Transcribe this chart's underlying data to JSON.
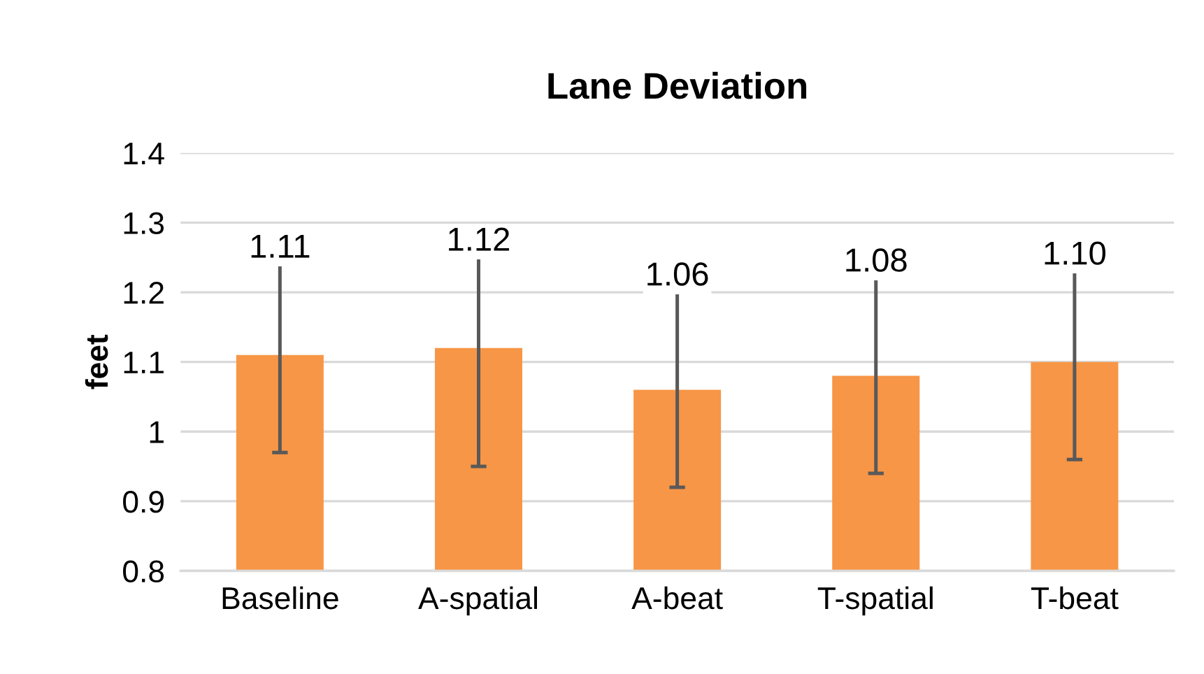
{
  "chart_data": {
    "type": "bar",
    "title": "Lane Deviation",
    "ylabel": "feet",
    "categories": [
      "Baseline",
      "A-spatial",
      "A-beat",
      "T-spatial",
      "T-beat"
    ],
    "values": [
      1.11,
      1.12,
      1.06,
      1.08,
      1.1
    ],
    "errors": [
      [
        0.97,
        1.24
      ],
      [
        0.95,
        1.25
      ],
      [
        0.92,
        1.2
      ],
      [
        0.94,
        1.22
      ],
      [
        0.96,
        1.23
      ]
    ],
    "color": "#f79646",
    "value_labels": [
      "1.11",
      "1.12",
      "1.06",
      "1.08",
      "1.10"
    ],
    "ylim": [
      0.8,
      1.4
    ],
    "yticks": [
      {
        "value": 0.8,
        "label": "0.8"
      },
      {
        "value": 0.9,
        "label": "0.9"
      },
      1,
      {
        "value": 1.1,
        "label": "1.1"
      },
      {
        "value": 1.2,
        "label": "1.2"
      },
      {
        "value": 1.3,
        "label": "1.3"
      },
      {
        "value": 1.4,
        "label": "1.4"
      }
    ],
    "grid": "y"
  }
}
